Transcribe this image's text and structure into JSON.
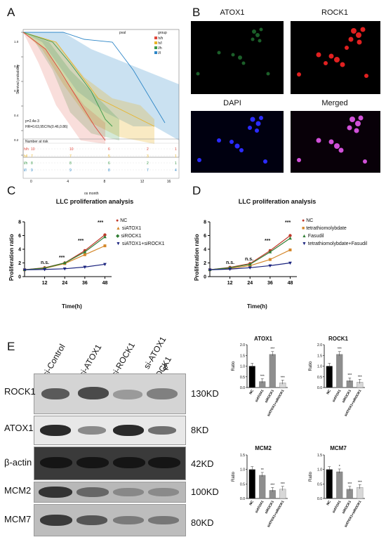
{
  "panel_letters": {
    "a": "A",
    "b": "B",
    "c": "C",
    "d": "D",
    "e": "E"
  },
  "survival": {
    "y_label": "Survival probability",
    "x_label": "os month",
    "pval_label": "pval",
    "group_label": "group",
    "p_text": "p=2.4e-3",
    "hr_text": "HR=0.63,95CI%(0.46,0.86)",
    "risk_title": "Number at risk",
    "y_ticks": [
      "1.0",
      "0.8",
      "0.6",
      "0.4",
      "0.2",
      "0.0"
    ],
    "x_ticks": [
      "0",
      "4",
      "8",
      "12",
      "16"
    ],
    "groups": [
      {
        "name": "h/h",
        "color": "#e0463a",
        "risk": [
          "10",
          "10",
          "6",
          "2",
          "1"
        ]
      },
      {
        "name": "h/l",
        "color": "#e8b429",
        "risk": [
          "7",
          "7",
          "5",
          "3",
          "1"
        ]
      },
      {
        "name": "l/h",
        "color": "#3b9a4a",
        "risk": [
          "8",
          "8",
          "6",
          "2",
          "1"
        ]
      },
      {
        "name": "l/l",
        "color": "#2d86c7",
        "risk": [
          "9",
          "9",
          "8",
          "7",
          "4"
        ]
      }
    ]
  },
  "fluor": {
    "atox1": "ATOX1",
    "rock1": "ROCK1",
    "dapi": "DAPI",
    "merged": "Merged"
  },
  "panel_c": {
    "title": "LLC proliferation analysis",
    "ylabel": "Proliferation ratio",
    "xlabel": "Time(h)",
    "legend": [
      "NC",
      "siATOX1",
      "siROCK1",
      "siATOX1+siROCK1"
    ],
    "sig": [
      "n.s.",
      "***",
      "***",
      "***"
    ]
  },
  "panel_d": {
    "title": "LLC proliferation analysis",
    "ylabel": "Proliferation ratio",
    "xlabel": "Time(h)",
    "legend": [
      "NC",
      "tetrathiomolybdate",
      "Fasudil",
      "tetrathiomolybdate+Fasudil"
    ],
    "sig": [
      "n.s.",
      "n.s.",
      "***",
      "***"
    ]
  },
  "blot": {
    "lanes": [
      "si-Control",
      "si-ATOX1",
      "si-ROCK1",
      "si-ATOX1",
      "&",
      "si-ROCK1"
    ],
    "rows": [
      {
        "label": "ROCK1",
        "kd": "130KD"
      },
      {
        "label": "ATOX1",
        "kd": "8KD"
      },
      {
        "label": "β-actin",
        "kd": "42KD"
      },
      {
        "label": "MCM2",
        "kd": "100KD"
      },
      {
        "label": "MCM7",
        "kd": "80KD"
      }
    ]
  },
  "bar_ylabel": "Ratio",
  "bar_categories": [
    "NC",
    "siATOX1",
    "siROCK1",
    "siATOX1+siROCK1"
  ],
  "chart_data": [
    {
      "type": "line",
      "title": "LLC proliferation analysis",
      "xlabel": "Time(h)",
      "ylabel": "Proliferation ratio",
      "x": [
        0,
        12,
        24,
        36,
        48
      ],
      "xlim": [
        0,
        52
      ],
      "ylim": [
        0,
        8
      ],
      "x_ticks": [
        "12",
        "24",
        "36",
        "48"
      ],
      "y_ticks": [
        "0",
        "2",
        "4",
        "6",
        "8"
      ],
      "series": [
        {
          "name": "NC",
          "color": "#c0392b",
          "values": [
            1,
            1.3,
            2.0,
            3.8,
            6.1
          ]
        },
        {
          "name": "siATOX1",
          "color": "#d4872a",
          "values": [
            1,
            1.2,
            1.9,
            3.2,
            4.5
          ]
        },
        {
          "name": "siROCK1",
          "color": "#2e7d32",
          "values": [
            1,
            1.25,
            2.0,
            3.6,
            5.8
          ]
        },
        {
          "name": "siATOX1+siROCK1",
          "color": "#1a237e",
          "values": [
            1,
            1.05,
            1.15,
            1.4,
            1.8
          ]
        }
      ]
    },
    {
      "type": "line",
      "title": "LLC proliferation analysis",
      "xlabel": "Time(h)",
      "ylabel": "Proliferation ratio",
      "x": [
        0,
        12,
        24,
        36,
        48
      ],
      "xlim": [
        0,
        52
      ],
      "ylim": [
        0,
        8
      ],
      "x_ticks": [
        "12",
        "24",
        "36",
        "48"
      ],
      "y_ticks": [
        "0",
        "2",
        "4",
        "6",
        "8"
      ],
      "series": [
        {
          "name": "NC",
          "color": "#c0392b",
          "values": [
            1,
            1.35,
            1.9,
            3.8,
            6.0
          ]
        },
        {
          "name": "tetrathiomolybdate",
          "color": "#d4872a",
          "values": [
            1,
            1.2,
            1.6,
            2.5,
            3.9
          ]
        },
        {
          "name": "Fasudil",
          "color": "#2e7d32",
          "values": [
            1,
            1.3,
            1.8,
            3.6,
            5.6
          ]
        },
        {
          "name": "tetrathiomolybdate+Fasudil",
          "color": "#1a237e",
          "values": [
            1,
            1.1,
            1.3,
            1.6,
            2.0
          ]
        }
      ]
    },
    {
      "type": "bar",
      "title": "ATOX1",
      "ylabel": "Ratio",
      "categories": [
        "NC",
        "siATOX1",
        "siROCK1",
        "siATOX1+siROCK1"
      ],
      "values": [
        1.0,
        0.28,
        1.55,
        0.22
      ],
      "ylim": [
        0,
        2.0
      ],
      "y_ticks": [
        "0.0",
        "0.5",
        "1.0",
        "1.5",
        "2.0"
      ],
      "sig": [
        "",
        "***",
        "***",
        "***"
      ]
    },
    {
      "type": "bar",
      "title": "ROCK1",
      "ylabel": "Ratio",
      "categories": [
        "NC",
        "siATOX1",
        "siROCK1",
        "siATOX1+siROCK1"
      ],
      "values": [
        1.0,
        1.55,
        0.32,
        0.25
      ],
      "ylim": [
        0,
        2.0
      ],
      "y_ticks": [
        "0.0",
        "0.5",
        "1.0",
        "1.5",
        "2.0"
      ],
      "sig": [
        "",
        "***",
        "***",
        "***"
      ]
    },
    {
      "type": "bar",
      "title": "MCM2",
      "ylabel": "Ratio",
      "categories": [
        "NC",
        "siATOX1",
        "siROCK1",
        "siATOX1+siROCK1"
      ],
      "values": [
        1.0,
        0.8,
        0.28,
        0.32
      ],
      "ylim": [
        0,
        1.5
      ],
      "y_ticks": [
        "0.0",
        "0.5",
        "1.0",
        "1.5"
      ],
      "sig": [
        "",
        "**",
        "***",
        "***"
      ]
    },
    {
      "type": "bar",
      "title": "MCM7",
      "ylabel": "Ratio",
      "categories": [
        "NC",
        "siATOX1",
        "siROCK1",
        "siATOX1+siROCK1"
      ],
      "values": [
        1.0,
        0.92,
        0.32,
        0.38
      ],
      "ylim": [
        0,
        1.5
      ],
      "y_ticks": [
        "0.0",
        "0.5",
        "1.0",
        "1.5"
      ],
      "sig": [
        "",
        "*",
        "***",
        "***"
      ]
    }
  ]
}
